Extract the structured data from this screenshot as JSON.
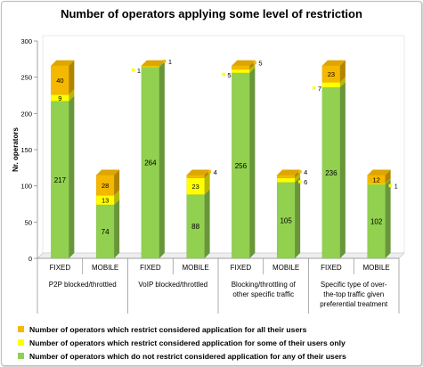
{
  "chart_data": {
    "type": "bar",
    "stacked": true,
    "title": "Number of operators applying some level of restriction",
    "ylabel": "Nr. operators",
    "ylim": [
      0,
      300
    ],
    "yticks": [
      0,
      50,
      100,
      150,
      200,
      250,
      300
    ],
    "grid": false,
    "legend_position": "bottom",
    "groups": [
      "P2P blocked/throttled",
      "VoIP blocked/throttled",
      "Blocking/throttling of other specific traffic",
      "Specific type of over-the-top traffic given preferential treatment"
    ],
    "group_lines": [
      [
        "P2P blocked/throttled"
      ],
      [
        "VoIP blocked/throttled"
      ],
      [
        "Blocking/throttling of",
        "other specific traffic"
      ],
      [
        "Specific type of over-",
        "the-top traffic given",
        "preferential treatment"
      ]
    ],
    "categories": [
      "FIXED",
      "MOBILE",
      "FIXED",
      "MOBILE",
      "FIXED",
      "MOBILE",
      "FIXED",
      "MOBILE"
    ],
    "series": [
      {
        "name": "Number of operators which do not restrict considered application for any of their users",
        "color": "#92d050",
        "values": [
          217,
          74,
          264,
          88,
          256,
          105,
          236,
          102
        ]
      },
      {
        "name": "Number of operators which restrict considered application for some of their users only",
        "color": "#ffff00",
        "values": [
          9,
          13,
          1,
          23,
          5,
          6,
          7,
          1
        ]
      },
      {
        "name": "Number of operators which restrict considered application for all their users",
        "color": "#f5b800",
        "values": [
          40,
          28,
          1,
          4,
          5,
          4,
          23,
          12
        ]
      }
    ],
    "legend_order": [
      2,
      1,
      0
    ]
  }
}
